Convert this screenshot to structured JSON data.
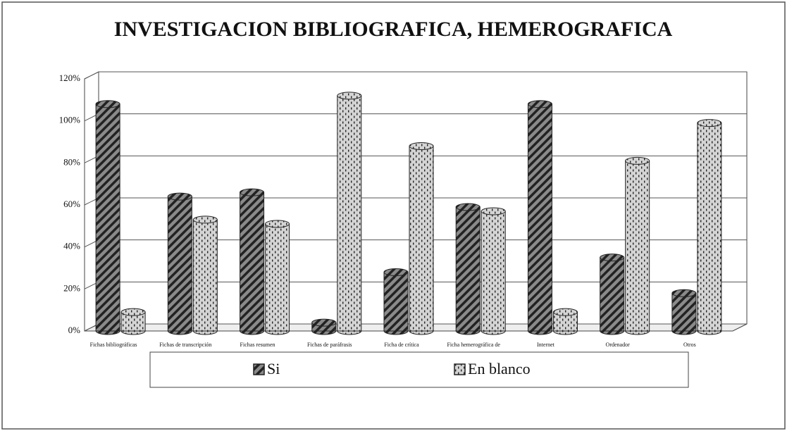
{
  "chart_data": {
    "type": "bar",
    "title": "INVESTIGACION BIBLIOGRAFICA, HEMEROGRAFICA",
    "categories": [
      "Fichas bibliográficas",
      "Fichas de transcripción",
      "Fichas resumen",
      "Fichas de paráfrasis",
      "Ficha de crítica",
      "Ficha hemerográfica de",
      "Internet",
      "Ordenador",
      "Otros"
    ],
    "series": [
      {
        "name": "Si",
        "color": "#8a8a8a",
        "values": [
          108,
          64,
          66,
          4,
          28,
          59,
          108,
          35,
          18
        ]
      },
      {
        "name": "En blanco",
        "color": "#d4d4d4",
        "values": [
          9,
          53,
          51,
          112,
          88,
          57,
          9,
          81,
          99
        ]
      }
    ],
    "ylim": [
      0,
      120
    ],
    "yticks": [
      {
        "value": 0,
        "label": "0%"
      },
      {
        "value": 20,
        "label": "20%"
      },
      {
        "value": 40,
        "label": "40%"
      },
      {
        "value": 60,
        "label": "60%"
      },
      {
        "value": 80,
        "label": "80%"
      },
      {
        "value": 100,
        "label": "100%"
      },
      {
        "value": 120,
        "label": "120%"
      }
    ],
    "grid": true,
    "legend": "bottom"
  }
}
